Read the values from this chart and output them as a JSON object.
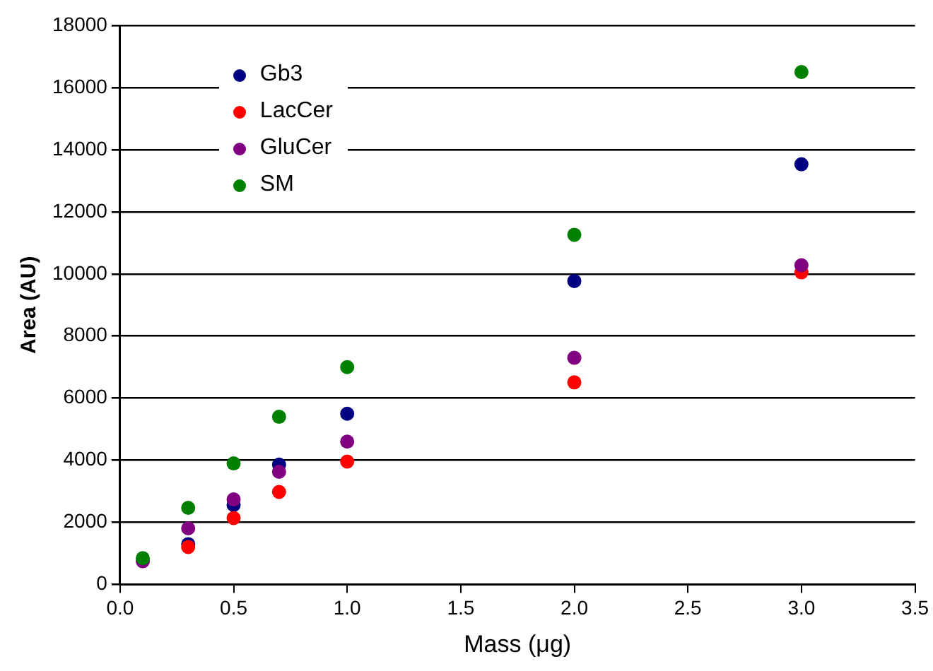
{
  "chart_data": {
    "type": "scatter",
    "xlabel": "Mass (μg)",
    "ylabel": "Area (AU)",
    "x": [
      0.1,
      0.3,
      0.5,
      0.7,
      1.0,
      2.0,
      3.0
    ],
    "series": [
      {
        "name": "Gb3",
        "color": "#000080",
        "values": [
          null,
          1300,
          2560,
          3860,
          5500,
          9770,
          13530
        ]
      },
      {
        "name": "LacCer",
        "color": "#ff0000",
        "values": [
          null,
          1210,
          2140,
          2980,
          3960,
          6510,
          10050
        ]
      },
      {
        "name": "GluCer",
        "color": "#800080",
        "values": [
          750,
          1810,
          2740,
          3630,
          4600,
          7300,
          10280
        ]
      },
      {
        "name": "SM",
        "color": "#008000",
        "values": [
          850,
          2470,
          3900,
          5400,
          7000,
          11260,
          16500
        ]
      }
    ],
    "xlim": [
      0,
      3.5
    ],
    "xticks": [
      {
        "value": 0,
        "label": "0.0"
      },
      0.5,
      {
        "value": 1,
        "label": "1.0"
      },
      1.5,
      {
        "value": 2,
        "label": "2.0"
      },
      2.5,
      {
        "value": 3,
        "label": "3.0"
      },
      3.5
    ],
    "ylim": [
      0,
      18000
    ],
    "yticks": [
      0,
      2000,
      4000,
      6000,
      8000,
      10000,
      12000,
      14000,
      16000,
      18000
    ],
    "grid": "y",
    "legend": "top left",
    "marker": "circle"
  }
}
